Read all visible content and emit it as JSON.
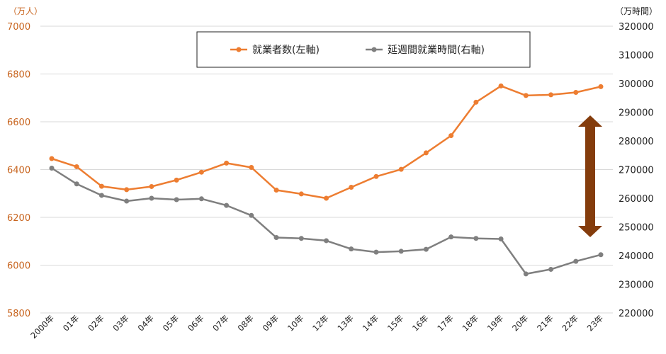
{
  "chart_data": {
    "type": "line",
    "categories": [
      "2000年",
      "01年",
      "02年",
      "03年",
      "04年",
      "05年",
      "06年",
      "07年",
      "08年",
      "09年",
      "10年",
      "12年",
      "13年",
      "14年",
      "15年",
      "16年",
      "17年",
      "18年",
      "19年",
      "20年",
      "21年",
      "22年",
      "23年"
    ],
    "y_left_unit": "（万人）",
    "y_right_unit": "（万時間）",
    "y_left_ticks": [
      "7000",
      "6800",
      "6600",
      "6400",
      "6200",
      "6000",
      "5800"
    ],
    "y_right_ticks": [
      "320000",
      "310000",
      "300000",
      "290000",
      "280000",
      "270000",
      "260000",
      "250000",
      "240000",
      "230000",
      "220000"
    ],
    "ylim_left": [
      5800,
      7000
    ],
    "ylim_right": [
      220000,
      320000
    ],
    "grid": true,
    "legend_position": "top-center",
    "series": [
      {
        "name": "就業者数(左軸)",
        "axis": "left",
        "color": "#ed7d31",
        "values": [
          6446,
          6412,
          6330,
          6316,
          6329,
          6356,
          6389,
          6427,
          6409,
          6314,
          6298,
          6280,
          6326,
          6371,
          6401,
          6470,
          6542,
          6682,
          6750,
          6710,
          6713,
          6723,
          6747
        ]
      },
      {
        "name": "延週間就業時間(右軸)",
        "axis": "right",
        "color": "#7f7f7f",
        "values": [
          270500,
          265000,
          261000,
          259000,
          260000,
          259500,
          259800,
          257500,
          254000,
          246300,
          246000,
          245200,
          242300,
          241200,
          241500,
          242200,
          246500,
          246000,
          245800,
          233600,
          235200,
          238000,
          240300
        ]
      }
    ],
    "annotation": {
      "type": "double-arrow",
      "color": "#843c0c",
      "category": "23年"
    }
  }
}
